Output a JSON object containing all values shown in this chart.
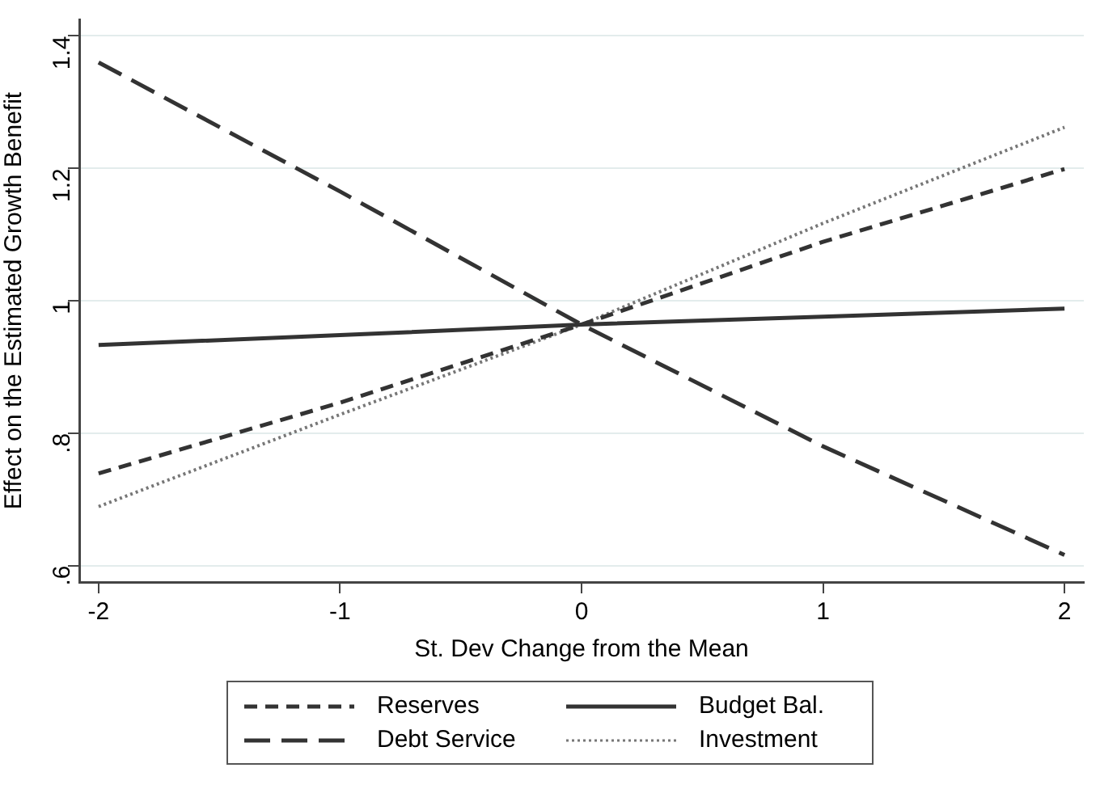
{
  "chart_data": {
    "type": "line",
    "xlabel": "St. Dev Change from the Mean",
    "ylabel": "Effect on the Estimated Growth Benefit",
    "x": [
      -2,
      -1,
      0,
      1,
      2
    ],
    "series": [
      {
        "name": "Reserves",
        "color": "#333333",
        "line_style": "dashed",
        "values": [
          0.739,
          0.846,
          0.964,
          1.089,
          1.199
        ]
      },
      {
        "name": "Debt Service",
        "color": "#333333",
        "line_style": "longdash",
        "values": [
          1.36,
          1.165,
          0.964,
          0.78,
          0.616
        ]
      },
      {
        "name": "Budget Bal.",
        "color": "#333333",
        "line_style": "solid",
        "values": [
          0.933,
          0.948,
          0.964,
          0.976,
          0.988
        ]
      },
      {
        "name": "Investment",
        "color": "#777777",
        "line_style": "dotted",
        "values": [
          0.689,
          0.828,
          0.964,
          1.117,
          1.262
        ]
      }
    ],
    "xlim": [
      -2.08,
      2.08
    ],
    "xticks": [
      -2,
      -1,
      0,
      1,
      2
    ],
    "ylim": [
      0.575,
      1.425
    ],
    "yticks": [
      {
        "value": 0.6,
        "label": ".6"
      },
      {
        "value": 0.8,
        "label": ".8"
      },
      1,
      1.2,
      1.4
    ],
    "grid": "y",
    "legend": "bottom",
    "marker": "none"
  }
}
